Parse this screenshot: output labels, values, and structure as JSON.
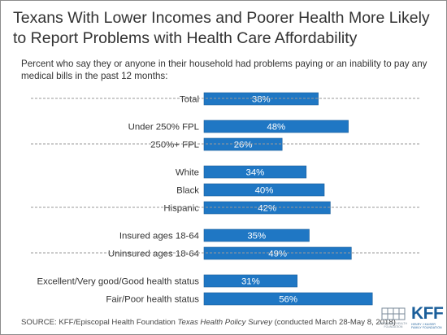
{
  "title": "Texans With Lower Incomes and Poorer Health More Likely to Report Problems with Health Care Affordability",
  "subtitle": "Percent who say they or anyone in their household had problems paying or an inability to pay any medical bills in the past 12 months:",
  "colors": {
    "bar": "#1f77c4",
    "bar_border": "#1a5e9a",
    "label": "#ffffff",
    "separator": "#9a9a9a",
    "brand": "#1a5e9a"
  },
  "chart_data": {
    "type": "bar",
    "orientation": "horizontal",
    "grid": false,
    "unit": "%",
    "groups": [
      {
        "categories": [
          "Total"
        ],
        "values": [
          38
        ]
      },
      {
        "categories": [
          "Under 250% FPL",
          "250%+ FPL"
        ],
        "values": [
          48,
          26
        ]
      },
      {
        "categories": [
          "White",
          "Black",
          "Hispanic"
        ],
        "values": [
          34,
          40,
          42
        ]
      },
      {
        "categories": [
          "Insured ages 18-64",
          "Uninsured ages 18-64"
        ],
        "values": [
          35,
          49
        ]
      },
      {
        "categories": [
          "Excellent/Very good/Good health status",
          "Fair/Poor health status"
        ],
        "values": [
          31,
          56
        ]
      }
    ],
    "xlim": [
      0,
      100
    ]
  },
  "footer": {
    "source_prefix": "SOURCE: KFF/Episcopal Health Foundation ",
    "survey_name": "Texas Health Policy Survey",
    "source_suffix": " (conducted March 28-May 8, 2018)"
  },
  "logos": {
    "ehf_icon": "episcopal-health-foundation-logo",
    "ehf_text": "EPISCOPAL HEALTH FOUNDATION",
    "kff_text": "KFF",
    "kff_sub": "HENRY J KAISER FAMILY FOUNDATION"
  }
}
